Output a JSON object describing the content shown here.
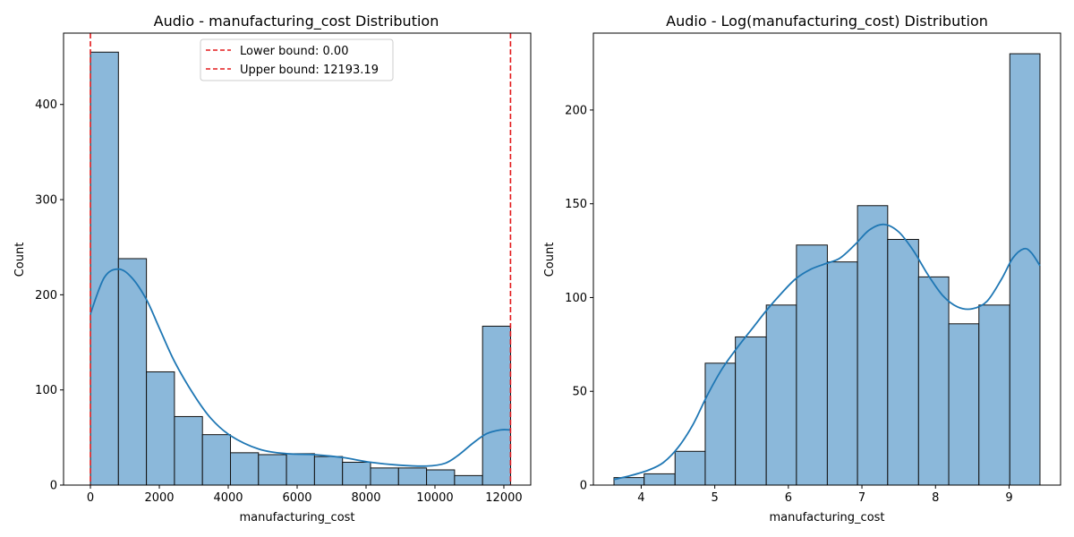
{
  "chart_data": [
    {
      "type": "histogram",
      "title": "Audio - manufacturing_cost Distribution",
      "xlabel": "manufacturing_cost",
      "ylabel": "Count",
      "xlim": [
        -780,
        12780
      ],
      "ylim": [
        0,
        475
      ],
      "xticks": [
        0,
        2000,
        4000,
        6000,
        8000,
        10000,
        12000
      ],
      "yticks": [
        0,
        100,
        200,
        300,
        400
      ],
      "bins": {
        "edges": [
          0,
          813,
          1626,
          2439,
          3252,
          4065,
          4878,
          5691,
          6504,
          7317,
          8130,
          8943,
          9756,
          10569,
          11382,
          12195
        ],
        "counts": [
          455,
          238,
          119,
          72,
          53,
          34,
          32,
          33,
          30,
          24,
          18,
          18,
          16,
          10,
          167
        ]
      },
      "kde": {
        "x": [
          0,
          400,
          813,
          1200,
          1626,
          2000,
          2439,
          3000,
          3500,
          4065,
          4878,
          5691,
          6504,
          7317,
          8130,
          8943,
          9756,
          10300,
          10700,
          11100,
          11500,
          11900,
          12195
        ],
        "y": [
          180,
          218,
          227,
          218,
          195,
          165,
          130,
          95,
          70,
          52,
          38,
          33,
          32,
          29,
          24,
          21,
          20,
          23,
          32,
          44,
          54,
          58,
          58
        ]
      },
      "vlines": [
        {
          "label": "Lower bound: 0.00",
          "x": 0
        },
        {
          "label": "Upper bound: 12193.19",
          "x": 12193.19
        }
      ],
      "legend_position": "top-center",
      "colors": {
        "bar_fill": "#8bb8da",
        "bar_edge": "#111111",
        "kde": "#1f77b4",
        "bounds": "#e31a1c"
      }
    },
    {
      "type": "histogram",
      "title": "Audio - Log(manufacturing_cost) Distribution",
      "xlabel": "manufacturing_cost",
      "ylabel": "Count",
      "xlim": [
        3.35,
        9.7
      ],
      "ylim": [
        0,
        241
      ],
      "xticks": [
        4,
        5,
        6,
        7,
        8,
        9
      ],
      "yticks": [
        0,
        50,
        100,
        150,
        200
      ],
      "bins": {
        "edges": [
          3.63,
          4.04,
          4.46,
          4.87,
          5.28,
          5.7,
          6.11,
          6.53,
          6.94,
          7.35,
          7.77,
          8.18,
          8.59,
          9.01,
          9.42
        ],
        "counts": [
          4,
          6,
          18,
          65,
          79,
          96,
          128,
          119,
          149,
          131,
          111,
          86,
          96,
          230
        ]
      },
      "kde": {
        "x": [
          3.63,
          3.85,
          4.1,
          4.3,
          4.5,
          4.7,
          4.9,
          5.1,
          5.3,
          5.5,
          5.7,
          5.9,
          6.1,
          6.3,
          6.5,
          6.7,
          6.9,
          7.1,
          7.3,
          7.5,
          7.7,
          7.9,
          8.1,
          8.3,
          8.5,
          8.7,
          8.9,
          9.05,
          9.2,
          9.3,
          9.42
        ],
        "y": [
          3,
          5,
          8,
          12,
          20,
          32,
          48,
          62,
          73,
          83,
          93,
          102,
          110,
          115,
          118,
          121,
          128,
          136,
          139,
          135,
          125,
          112,
          101,
          95,
          94,
          98,
          110,
          121,
          126,
          124,
          117
        ]
      },
      "legend_position": "none",
      "colors": {
        "bar_fill": "#8bb8da",
        "bar_edge": "#111111",
        "kde": "#1f77b4"
      }
    }
  ]
}
